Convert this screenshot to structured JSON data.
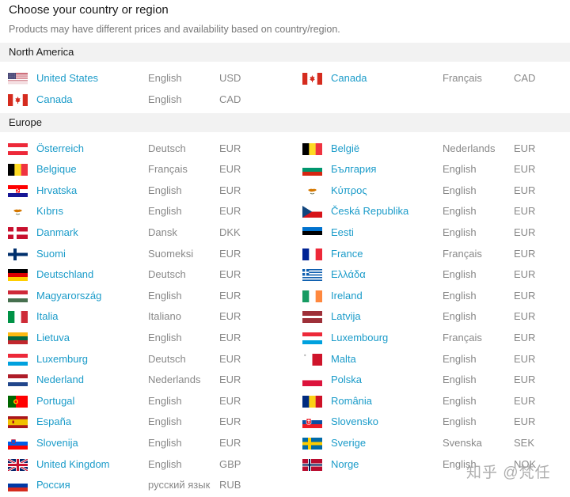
{
  "header": {
    "title": "Choose your country or region",
    "subtitle": "Products may have different prices and availability based on country/region."
  },
  "colors": {
    "link": "#1a9bc9",
    "muted": "#888888",
    "section_bg": "#f2f2f2"
  },
  "sections": [
    {
      "name": "North America",
      "entries": [
        {
          "flag": "us-flag",
          "country": "United States",
          "language": "English",
          "currency": "USD"
        },
        {
          "flag": "ca-flag",
          "country": "Canada",
          "language": "Français",
          "currency": "CAD"
        },
        {
          "flag": "ca-flag",
          "country": "Canada",
          "language": "English",
          "currency": "CAD"
        }
      ]
    },
    {
      "name": "Europe",
      "entries": [
        {
          "flag": "at-flag",
          "country": "Österreich",
          "language": "Deutsch",
          "currency": "EUR"
        },
        {
          "flag": "be-flag",
          "country": "België",
          "language": "Nederlands",
          "currency": "EUR"
        },
        {
          "flag": "be-flag",
          "country": "Belgique",
          "language": "Français",
          "currency": "EUR"
        },
        {
          "flag": "bg-flag",
          "country": "България",
          "language": "English",
          "currency": "EUR"
        },
        {
          "flag": "hr-flag",
          "country": "Hrvatska",
          "language": "English",
          "currency": "EUR"
        },
        {
          "flag": "cy-flag",
          "country": "Κύπρος",
          "language": "English",
          "currency": "EUR"
        },
        {
          "flag": "cy-flag",
          "country": "Kıbrıs",
          "language": "English",
          "currency": "EUR"
        },
        {
          "flag": "cz-flag",
          "country": "Česká Republika",
          "language": "English",
          "currency": "EUR"
        },
        {
          "flag": "dk-flag",
          "country": "Danmark",
          "language": "Dansk",
          "currency": "DKK"
        },
        {
          "flag": "ee-flag",
          "country": "Eesti",
          "language": "English",
          "currency": "EUR"
        },
        {
          "flag": "fi-flag",
          "country": "Suomi",
          "language": "Suomeksi",
          "currency": "EUR"
        },
        {
          "flag": "fr-flag",
          "country": "France",
          "language": "Français",
          "currency": "EUR"
        },
        {
          "flag": "de-flag",
          "country": "Deutschland",
          "language": "Deutsch",
          "currency": "EUR"
        },
        {
          "flag": "gr-flag",
          "country": "Ελλάδα",
          "language": "English",
          "currency": "EUR"
        },
        {
          "flag": "hu-flag",
          "country": "Magyarország",
          "language": "English",
          "currency": "EUR"
        },
        {
          "flag": "ie-flag",
          "country": "Ireland",
          "language": "English",
          "currency": "EUR"
        },
        {
          "flag": "it-flag",
          "country": "Italia",
          "language": "Italiano",
          "currency": "EUR"
        },
        {
          "flag": "lv-flag",
          "country": "Latvija",
          "language": "English",
          "currency": "EUR"
        },
        {
          "flag": "lt-flag",
          "country": "Lietuva",
          "language": "English",
          "currency": "EUR"
        },
        {
          "flag": "lu-flag",
          "country": "Luxembourg",
          "language": "Français",
          "currency": "EUR"
        },
        {
          "flag": "lu-flag",
          "country": "Luxemburg",
          "language": "Deutsch",
          "currency": "EUR"
        },
        {
          "flag": "mt-flag",
          "country": "Malta",
          "language": "English",
          "currency": "EUR"
        },
        {
          "flag": "nl-flag",
          "country": "Nederland",
          "language": "Nederlands",
          "currency": "EUR"
        },
        {
          "flag": "pl-flag",
          "country": "Polska",
          "language": "English",
          "currency": "EUR"
        },
        {
          "flag": "pt-flag",
          "country": "Portugal",
          "language": "English",
          "currency": "EUR"
        },
        {
          "flag": "ro-flag",
          "country": "România",
          "language": "English",
          "currency": "EUR"
        },
        {
          "flag": "es-flag",
          "country": "España",
          "language": "English",
          "currency": "EUR"
        },
        {
          "flag": "sk-flag",
          "country": "Slovensko",
          "language": "English",
          "currency": "EUR"
        },
        {
          "flag": "si-flag",
          "country": "Slovenija",
          "language": "English",
          "currency": "EUR"
        },
        {
          "flag": "se-flag",
          "country": "Sverige",
          "language": "Svenska",
          "currency": "SEK"
        },
        {
          "flag": "gb-flag",
          "country": "United Kingdom",
          "language": "English",
          "currency": "GBP"
        },
        {
          "flag": "no-flag",
          "country": "Norge",
          "language": "English",
          "currency": "NOK"
        },
        {
          "flag": "ru-flag",
          "country": "Россия",
          "language": "русский язык",
          "currency": "RUB"
        }
      ]
    }
  ],
  "watermark": "知乎 @梵任"
}
